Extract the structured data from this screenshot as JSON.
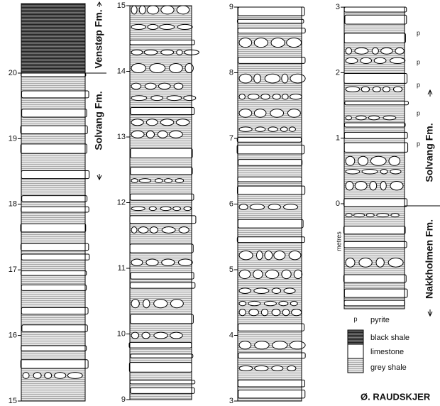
{
  "columns": [
    {
      "ticks": [
        15,
        16,
        17,
        18,
        19,
        20
      ]
    },
    {
      "ticks": [
        9,
        10,
        11,
        12,
        13,
        14,
        15
      ]
    },
    {
      "ticks": [
        3,
        4,
        5,
        6,
        7,
        8,
        9
      ]
    },
    {
      "ticks": [
        0,
        1,
        2,
        3
      ]
    }
  ],
  "formations": [
    {
      "label": "Venstøp Fm."
    },
    {
      "label": "Solvang Fm."
    },
    {
      "label": "Solvang Fm."
    },
    {
      "label": "Nakkholmen Fm."
    }
  ],
  "axis_label": "metres",
  "pyrite_markers": [
    "p",
    "p",
    "p",
    "p",
    "p"
  ],
  "legend": [
    {
      "symbol": "p",
      "label": "pyrite"
    },
    {
      "label": "black shale"
    },
    {
      "label": "limestone"
    },
    {
      "label": "grey shale"
    }
  ],
  "locality": "Ø. RAUDSKJER"
}
